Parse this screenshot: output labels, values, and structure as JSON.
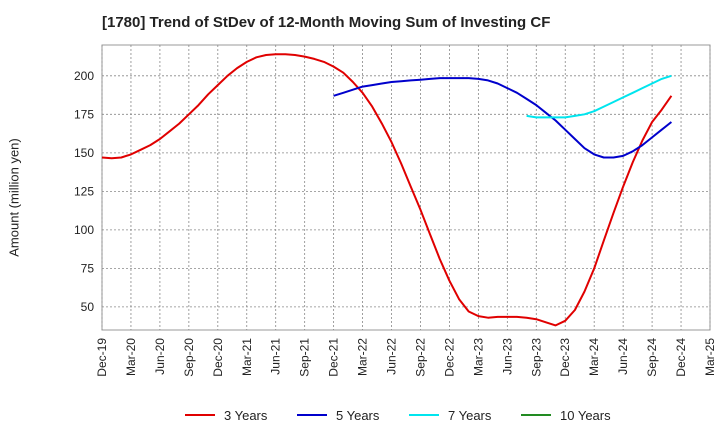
{
  "chart_data": {
    "type": "line",
    "title": "[1780]  Trend of StDev of 12-Month Moving Sum of Investing CF",
    "xlabel": "",
    "ylabel": "Amount (million yen)",
    "x_ticks": [
      "Dec-19",
      "Mar-20",
      "Jun-20",
      "Sep-20",
      "Dec-20",
      "Mar-21",
      "Jun-21",
      "Sep-21",
      "Dec-21",
      "Mar-22",
      "Jun-22",
      "Sep-22",
      "Dec-22",
      "Mar-23",
      "Jun-23",
      "Sep-23",
      "Dec-23",
      "Mar-24",
      "Jun-24",
      "Sep-24",
      "Dec-24",
      "Mar-25"
    ],
    "y_ticks": [
      50,
      75,
      100,
      125,
      150,
      175,
      200
    ],
    "ylim": [
      35,
      220
    ],
    "grid": true,
    "legend_position": "bottom",
    "series": [
      {
        "name": "3 Years",
        "color": "#e00000",
        "points": [
          [
            "Dec-19",
            147
          ],
          [
            "Jan-20",
            146.5
          ],
          [
            "Feb-20",
            147
          ],
          [
            "Mar-20",
            149
          ],
          [
            "Apr-20",
            152
          ],
          [
            "May-20",
            155
          ],
          [
            "Jun-20",
            159
          ],
          [
            "Jul-20",
            164
          ],
          [
            "Aug-20",
            169
          ],
          [
            "Sep-20",
            175
          ],
          [
            "Oct-20",
            181
          ],
          [
            "Nov-20",
            188
          ],
          [
            "Dec-20",
            194
          ],
          [
            "Jan-21",
            200
          ],
          [
            "Feb-21",
            205
          ],
          [
            "Mar-21",
            209
          ],
          [
            "Apr-21",
            212
          ],
          [
            "May-21",
            213.5
          ],
          [
            "Jun-21",
            214
          ],
          [
            "Jul-21",
            214
          ],
          [
            "Aug-21",
            213.5
          ],
          [
            "Sep-21",
            212.5
          ],
          [
            "Oct-21",
            211
          ],
          [
            "Nov-21",
            209
          ],
          [
            "Dec-21",
            206
          ],
          [
            "Jan-22",
            202
          ],
          [
            "Feb-22",
            196
          ],
          [
            "Mar-22",
            189
          ],
          [
            "Apr-22",
            180
          ],
          [
            "May-22",
            169
          ],
          [
            "Jun-22",
            157
          ],
          [
            "Jul-22",
            143
          ],
          [
            "Aug-22",
            128
          ],
          [
            "Sep-22",
            113
          ],
          [
            "Oct-22",
            97
          ],
          [
            "Nov-22",
            81
          ],
          [
            "Dec-22",
            67
          ],
          [
            "Jan-23",
            55
          ],
          [
            "Feb-23",
            47
          ],
          [
            "Mar-23",
            44
          ],
          [
            "Apr-23",
            43
          ],
          [
            "May-23",
            43.5
          ],
          [
            "Jun-23",
            43.5
          ],
          [
            "Jul-23",
            43.5
          ],
          [
            "Aug-23",
            43
          ],
          [
            "Sep-23",
            42
          ],
          [
            "Oct-23",
            40
          ],
          [
            "Nov-23",
            38
          ],
          [
            "Dec-23",
            41
          ],
          [
            "Jan-24",
            48
          ],
          [
            "Feb-24",
            60
          ],
          [
            "Mar-24",
            75
          ],
          [
            "Apr-24",
            93
          ],
          [
            "May-24",
            111
          ],
          [
            "Jun-24",
            128
          ],
          [
            "Jul-24",
            144
          ],
          [
            "Aug-24",
            158
          ],
          [
            "Sep-24",
            170
          ],
          [
            "Oct-24",
            178
          ],
          [
            "Nov-24",
            187
          ]
        ]
      },
      {
        "name": "5 Years",
        "color": "#0000cc",
        "points": [
          [
            "Dec-21",
            187
          ],
          [
            "Jan-22",
            189
          ],
          [
            "Feb-22",
            191
          ],
          [
            "Mar-22",
            193
          ],
          [
            "Apr-22",
            194
          ],
          [
            "May-22",
            195
          ],
          [
            "Jun-22",
            196
          ],
          [
            "Jul-22",
            196.5
          ],
          [
            "Aug-22",
            197
          ],
          [
            "Sep-22",
            197.5
          ],
          [
            "Oct-22",
            198
          ],
          [
            "Nov-22",
            198.5
          ],
          [
            "Dec-22",
            198.5
          ],
          [
            "Jan-23",
            198.5
          ],
          [
            "Feb-23",
            198.5
          ],
          [
            "Mar-23",
            198
          ],
          [
            "Apr-23",
            197
          ],
          [
            "May-23",
            195
          ],
          [
            "Jun-23",
            192
          ],
          [
            "Jul-23",
            189
          ],
          [
            "Aug-23",
            185
          ],
          [
            "Sep-23",
            181
          ],
          [
            "Oct-23",
            176
          ],
          [
            "Nov-23",
            171
          ],
          [
            "Dec-23",
            165
          ],
          [
            "Jan-24",
            159
          ],
          [
            "Feb-24",
            153
          ],
          [
            "Mar-24",
            149
          ],
          [
            "Apr-24",
            147
          ],
          [
            "May-24",
            147
          ],
          [
            "Jun-24",
            148
          ],
          [
            "Jul-24",
            151
          ],
          [
            "Aug-24",
            155
          ],
          [
            "Sep-24",
            160
          ],
          [
            "Oct-24",
            165
          ],
          [
            "Nov-24",
            170
          ]
        ]
      },
      {
        "name": "7 Years",
        "color": "#00e5ee",
        "points": [
          [
            "Aug-23",
            174
          ],
          [
            "Sep-23",
            173
          ],
          [
            "Oct-23",
            173
          ],
          [
            "Nov-23",
            173
          ],
          [
            "Dec-23",
            173
          ],
          [
            "Jan-24",
            174
          ],
          [
            "Feb-24",
            175
          ],
          [
            "Mar-24",
            177
          ],
          [
            "Apr-24",
            180
          ],
          [
            "May-24",
            183
          ],
          [
            "Jun-24",
            186
          ],
          [
            "Jul-24",
            189
          ],
          [
            "Aug-24",
            192
          ],
          [
            "Sep-24",
            195
          ],
          [
            "Oct-24",
            198
          ],
          [
            "Nov-24",
            200
          ]
        ]
      },
      {
        "name": "10 Years",
        "color": "#228b22",
        "points": []
      }
    ]
  }
}
